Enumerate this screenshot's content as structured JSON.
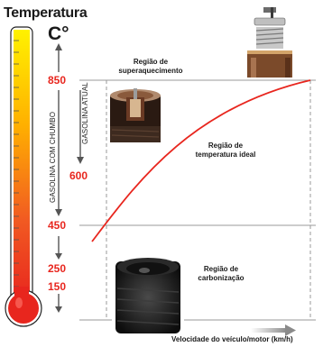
{
  "diagram": {
    "title": "Temperatura",
    "unit": "C°",
    "temperature_ticks": [
      "850",
      "600",
      "450",
      "250",
      "150"
    ],
    "vertical_labels": {
      "lead_gasoline": "GASOLINA COM CHUMBO",
      "current_gasoline": "GASOLINA ATUAL"
    },
    "regions": {
      "overheating": [
        "Região de",
        "superaquecimento"
      ],
      "ideal": [
        "Região de",
        "temperatura ideal"
      ],
      "carbonization": [
        "Região de",
        "carbonização"
      ]
    },
    "x_axis_label": "Velocidade do veículo/motor (km/h)",
    "colors": {
      "accent": "#e8261e",
      "curve": "#e8261e",
      "guide_lines": "#9a9a9a",
      "thermometer_top": "#ffe600",
      "thermometer_bottom": "#e8261e"
    }
  }
}
